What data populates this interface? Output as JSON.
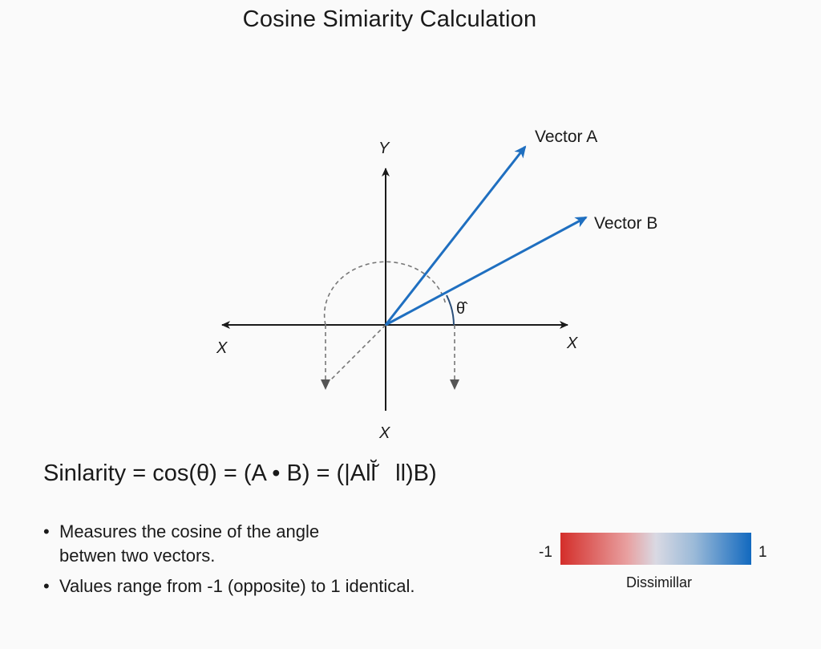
{
  "title": "Cosine Simiarity Calculation",
  "diagram": {
    "y_axis_label": "Y",
    "x_axis_label_left": "X",
    "x_axis_label_right": "X",
    "x_axis_label_bottom": "X",
    "vector_a_label": "Vector A",
    "vector_b_label": "Vector B",
    "angle_label": "θ̂",
    "vector_color": "#1f6fc0",
    "axis_color": "#1a1a1a",
    "projection_color": "#777777"
  },
  "formula": "Sinlarity = cos(θ) = (A • B) = (|All̆̆   ll)B)",
  "bullets": [
    {
      "line1": "Measures the cosine of the angle",
      "line2": "betwen two vectors."
    },
    {
      "line1": "Values range from -1 (opposite) to 1 identical.",
      "line2": ""
    }
  ],
  "scale": {
    "min_label": "-1",
    "max_label": "1",
    "caption": "Dissimillar",
    "color_low": "#d42e2a",
    "color_high": "#1269bf"
  }
}
